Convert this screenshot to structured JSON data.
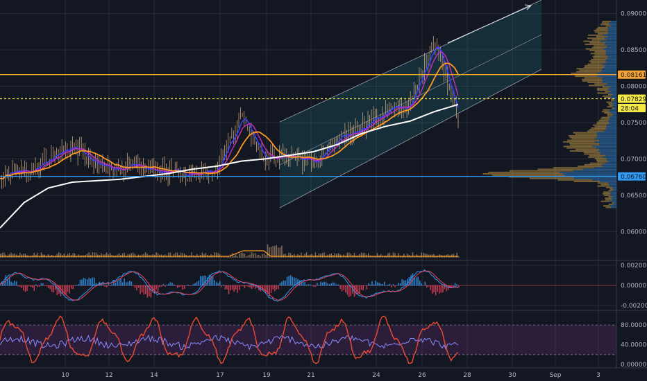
{
  "chart_data": {
    "type": "line",
    "x_dates": [
      "10",
      "12",
      "14",
      "17",
      "19",
      "21",
      "24",
      "26",
      "28",
      "30",
      "Sep",
      "3"
    ],
    "main": {
      "y_ticks": [
        "0.09000",
        "0.08500",
        "0.08000",
        "0.07500",
        "0.07000",
        "0.06500",
        "0.06000"
      ],
      "y_values": [
        0.09,
        0.085,
        0.08,
        0.075,
        0.07,
        0.065,
        0.06
      ],
      "ylim": [
        0.0565,
        0.0915
      ],
      "price_badges": [
        {
          "label": "0.08161",
          "value": 0.08161,
          "color": "#f7a435",
          "line_style": "solid"
        },
        {
          "label": "0.07829",
          "value": 0.07829,
          "color": "#f5e942",
          "line_style": "dotted"
        },
        {
          "label": "28:04",
          "value": 0.077,
          "color": "#f5e942",
          "line_style": "none"
        },
        {
          "label": "0.06760",
          "value": 0.0676,
          "color": "#2f9bf5",
          "line_style": "solid"
        }
      ],
      "close_sample": {
        "dates": [
          "8",
          "9",
          "10",
          "11",
          "12",
          "13",
          "14",
          "15",
          "16",
          "17",
          "18",
          "19",
          "20",
          "21",
          "22",
          "23",
          "24",
          "25",
          "26",
          "27"
        ],
        "values": [
          0.0678,
          0.0682,
          0.07,
          0.0718,
          0.069,
          0.0688,
          0.0686,
          0.0682,
          0.0679,
          0.069,
          0.076,
          0.07,
          0.0705,
          0.0695,
          0.0725,
          0.0745,
          0.0765,
          0.0775,
          0.0865,
          0.076
        ]
      },
      "ma_white_sample": [
        0.0605,
        0.064,
        0.066,
        0.0668,
        0.067,
        0.0672,
        0.0676,
        0.068,
        0.0686,
        0.069,
        0.0697,
        0.07,
        0.0705,
        0.071,
        0.072,
        0.0735,
        0.0745,
        0.0752,
        0.0765,
        0.0775
      ]
    },
    "macd": {
      "y_ticks": [
        "0.00200",
        "0.00000",
        "-0.00200"
      ],
      "y_values": [
        0.002,
        0.0,
        -0.002
      ]
    },
    "oscillator": {
      "y_ticks": [
        "80.00000",
        "40.00000",
        "0.00000"
      ],
      "y_values": [
        80,
        40,
        0
      ],
      "ylim": [
        0,
        100
      ],
      "band_upper": 80,
      "band_lower": 20
    },
    "colors": {
      "background": "#131722",
      "grid": "#2a2e39",
      "axis_text": "#b2b5be",
      "ma_white": "#ffffff",
      "ma_orange": "#ff9b21",
      "ma_magenta": "#cc2ebd",
      "ma_blue": "#3a3dff",
      "candle": "#c9a27a",
      "channel": "#c8ccd6",
      "volume_profile_gold": "#c59a45",
      "volume_profile_blue": "#2b6aa3",
      "macd_blue": "#2f9bf5",
      "macd_red": "#e9435c",
      "stoch_blue": "#8a8cff",
      "stoch_red": "#ef4b30",
      "stoch_zone": "#5b2a6b"
    }
  }
}
